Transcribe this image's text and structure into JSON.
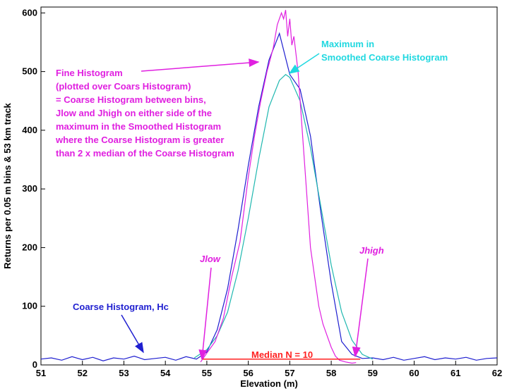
{
  "chart_data": {
    "type": "line",
    "xlabel": "Elevation (m)",
    "ylabel": "Returns per 0.05 m bins & 53 km track",
    "xlim": [
      51,
      62
    ],
    "ylim": [
      0,
      610
    ],
    "xticks": [
      51,
      52,
      53,
      54,
      55,
      56,
      57,
      58,
      59,
      60,
      61,
      62
    ],
    "yticks": [
      0,
      100,
      200,
      300,
      400,
      500,
      600
    ],
    "series": [
      {
        "name": "Coarse Histogram, Hc",
        "color": "#1f1fd0",
        "x": [
          51.0,
          51.25,
          51.5,
          51.75,
          52.0,
          52.25,
          52.5,
          52.75,
          53.0,
          53.25,
          53.5,
          53.75,
          54.0,
          54.25,
          54.5,
          54.75,
          55.0,
          55.25,
          55.5,
          55.75,
          56.0,
          56.25,
          56.5,
          56.75,
          57.0,
          57.25,
          57.5,
          57.75,
          58.0,
          58.25,
          58.5,
          58.75,
          59.0,
          59.25,
          59.5,
          59.75,
          60.0,
          60.25,
          60.5,
          60.75,
          61.0,
          61.25,
          61.5,
          61.75,
          62.0
        ],
        "y": [
          10,
          12,
          8,
          14,
          9,
          13,
          7,
          12,
          10,
          15,
          9,
          11,
          13,
          8,
          14,
          10,
          22,
          60,
          130,
          230,
          340,
          440,
          520,
          565,
          495,
          470,
          390,
          260,
          140,
          40,
          18,
          11,
          12,
          9,
          13,
          8,
          11,
          14,
          9,
          12,
          10,
          13,
          8,
          11,
          12
        ]
      },
      {
        "name": "Smoothed Coarse Histogram",
        "color": "#20b8b0",
        "x": [
          54.7,
          55.0,
          55.25,
          55.5,
          55.75,
          56.0,
          56.25,
          56.5,
          56.75,
          56.9,
          57.0,
          57.25,
          57.5,
          57.75,
          58.0,
          58.25,
          58.5,
          58.75,
          59.0
        ],
        "y": [
          12,
          26,
          50,
          90,
          160,
          250,
          350,
          440,
          485,
          495,
          490,
          450,
          370,
          270,
          170,
          90,
          42,
          18,
          10
        ]
      },
      {
        "name": "Fine Histogram",
        "color": "#e020e0",
        "x": [
          54.85,
          55.0,
          55.2,
          55.4,
          55.6,
          55.8,
          56.0,
          56.15,
          56.3,
          56.45,
          56.6,
          56.7,
          56.8,
          56.85,
          56.9,
          56.95,
          57.0,
          57.05,
          57.1,
          57.2,
          57.3,
          57.4,
          57.5,
          57.6,
          57.7,
          57.8,
          57.9,
          58.0,
          58.1,
          58.2,
          58.35,
          58.5,
          58.6
        ],
        "y": [
          5,
          20,
          40,
          80,
          150,
          210,
          320,
          390,
          450,
          500,
          540,
          580,
          600,
          590,
          605,
          560,
          590,
          545,
          560,
          500,
          400,
          300,
          200,
          150,
          100,
          70,
          50,
          30,
          15,
          8,
          5,
          3,
          4
        ]
      },
      {
        "name": "Median N = 10",
        "color": "#ff2020",
        "x": [
          54.9,
          58.7
        ],
        "y": [
          10,
          10
        ]
      }
    ],
    "annotations": [
      {
        "id": "fine",
        "lines": [
          "Fine Histogram",
          "(plotted over Coars Histogram)",
          "= Coarse Histogram between bins,",
          "Jlow and Jhigh on either side of the",
          "maximum in the Smoothed Histogram",
          "where the Coarse Histogram is greater",
          "than 2 x median of the Coarse Histogram"
        ],
        "color": "#e020e0"
      },
      {
        "id": "max",
        "lines": [
          "Maximum in",
          "Smoothed Coarse Histogram"
        ],
        "color": "#20d8e0"
      },
      {
        "id": "coarse",
        "text": "Coarse Histogram, Hc",
        "color": "#1f1fd0"
      },
      {
        "id": "median",
        "text": "Median N = 10",
        "color": "#ff2020"
      },
      {
        "id": "jlow",
        "text": "Jlow",
        "color": "#e020e0"
      },
      {
        "id": "jhigh",
        "text": "Jhigh",
        "color": "#e020e0"
      }
    ]
  }
}
